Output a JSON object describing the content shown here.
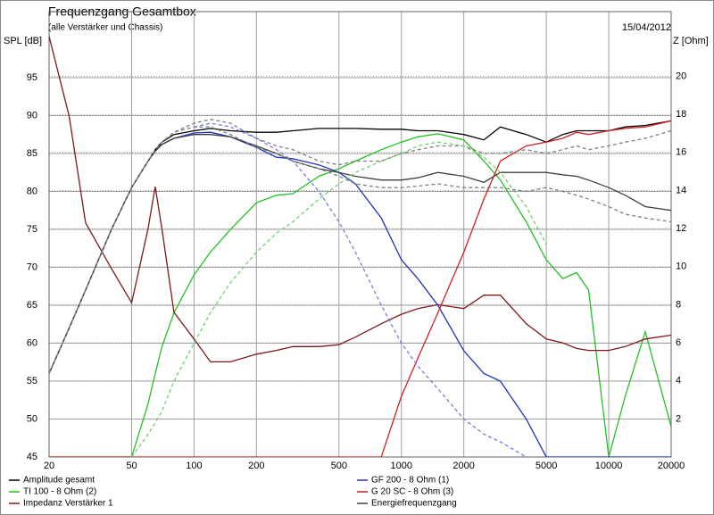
{
  "chart_data": {
    "type": "line",
    "title": "Frequenzgang Gesamtbox",
    "subtitle": "(alle Verstärker und Chassis)",
    "date": "15/04/2012",
    "y_label": "SPL [dB]",
    "y2_label": "Z [Ohm]",
    "x_log": true,
    "grid": true,
    "xlim": [
      20,
      20000
    ],
    "xticks": [
      20,
      50,
      100,
      200,
      500,
      1000,
      2000,
      5000,
      10000,
      20000
    ],
    "ylim": [
      45,
      103.7
    ],
    "yticks": [
      45,
      50,
      55,
      60,
      65,
      70,
      75,
      80,
      85,
      90,
      95
    ],
    "y2lim": [
      0,
      23.4
    ],
    "y2ticks": [
      2,
      4,
      6,
      8,
      10,
      12,
      14,
      16,
      18,
      20
    ],
    "x": [
      20,
      25,
      30,
      40,
      50,
      60,
      65,
      70,
      80,
      100,
      120,
      150,
      200,
      250,
      300,
      400,
      500,
      600,
      800,
      1000,
      1200,
      1500,
      2000,
      2500,
      3000,
      4000,
      5000,
      6000,
      7000,
      8000,
      10000,
      12000,
      15000,
      20000
    ],
    "series": [
      {
        "name": "Amplitude gesamt",
        "color": "#000000",
        "values": [
          56,
          62,
          67,
          75,
          80.5,
          84,
          85.5,
          86.5,
          87.5,
          88,
          88.3,
          88,
          87.8,
          87.8,
          88,
          88.3,
          88.3,
          88.3,
          88.2,
          88.2,
          88,
          88,
          87.5,
          86.8,
          88.5,
          87.5,
          86.5,
          87.5,
          88,
          88,
          88,
          88.5,
          88.7,
          89.3
        ]
      },
      {
        "name": "TI 100 - 8 Ohm (2)",
        "color": "#22c022",
        "values": [
          45,
          45,
          45,
          45,
          45,
          52,
          56,
          59.5,
          64,
          69,
          72,
          75,
          78.5,
          79.5,
          79.7,
          82,
          83,
          84,
          85.5,
          86.5,
          87.2,
          87.6,
          86.8,
          84,
          81.5,
          76,
          71,
          68.5,
          69.3,
          67,
          45,
          53,
          61.5,
          49
        ]
      },
      {
        "name": "Impedanz Verstärker 1",
        "color": "#7a1a1a",
        "axis": "y2",
        "values": [
          22.1,
          17.9,
          12.3,
          9.9,
          8.1,
          12,
          14.2,
          12,
          7.6,
          6.2,
          5,
          5,
          5.4,
          5.6,
          5.8,
          5.8,
          5.9,
          6.3,
          7,
          7.5,
          7.8,
          8,
          7.8,
          8.5,
          8.5,
          7,
          6.2,
          6,
          5.7,
          5.6,
          5.6,
          5.8,
          6.2,
          6.4
        ]
      },
      {
        "name": "GF 200 - 8 Ohm (1)",
        "color": "#2030c0",
        "values": [
          56,
          62,
          67,
          75,
          80.5,
          84,
          85.3,
          86.2,
          87,
          87.7,
          87.8,
          87.2,
          85.8,
          84.5,
          84.3,
          83.5,
          82.5,
          81,
          76.5,
          71,
          68.5,
          65,
          59,
          56,
          55,
          50,
          45,
          45,
          45,
          45,
          45,
          45,
          45,
          45
        ]
      },
      {
        "name": "G 20 SC - 8 Ohm (3)",
        "color": "#d02020",
        "values": [
          45,
          45,
          45,
          45,
          45,
          45,
          45,
          45,
          45,
          45,
          45,
          45,
          45,
          45,
          45,
          45,
          45,
          45,
          45,
          53,
          58,
          64,
          72,
          79,
          84,
          86,
          86.5,
          87,
          87.8,
          87.5,
          88,
          88.3,
          88.5,
          89.3
        ]
      },
      {
        "name": "Energiefrequenzgang",
        "color": "#404040",
        "values": [
          56,
          62,
          67,
          75,
          80.5,
          84,
          85.3,
          86.2,
          87,
          87.5,
          87.5,
          87.2,
          86,
          85,
          84,
          83,
          82.5,
          82,
          81.5,
          81.5,
          81.8,
          82.5,
          82,
          81.2,
          82.5,
          82.5,
          82.5,
          82.2,
          82,
          81.5,
          80.5,
          79.5,
          78,
          77.5
        ]
      },
      {
        "color": "#808080",
        "dash": true,
        "values": [
          56,
          62,
          67,
          75,
          80.5,
          84,
          85.5,
          86.5,
          87.8,
          89,
          89.5,
          89,
          87,
          86,
          85.5,
          84,
          83.5,
          84,
          84,
          85,
          85.5,
          86,
          86,
          85,
          85,
          85.5,
          85,
          85.5,
          86,
          85.5,
          86,
          86.5,
          87,
          88
        ]
      },
      {
        "color": "#808080",
        "dash": true,
        "values": [
          56,
          62,
          67,
          75,
          80.5,
          84,
          85.5,
          86.5,
          87.8,
          88.5,
          88.5,
          87.5,
          85.8,
          85,
          84,
          83,
          82,
          81,
          80.5,
          80.5,
          80.7,
          81,
          80.5,
          80.5,
          80.5,
          80,
          80.5,
          80,
          79.5,
          79,
          78,
          77,
          76.5,
          76
        ]
      },
      {
        "color": "#70d070",
        "dash": true,
        "values": [
          null,
          null,
          null,
          null,
          45,
          48,
          49.5,
          51,
          55,
          60,
          64,
          68,
          72,
          74.5,
          76,
          79,
          81,
          82.5,
          84,
          85,
          86,
          86.5,
          86,
          84.5,
          82.5,
          78,
          73,
          null,
          null,
          null,
          null,
          null,
          null,
          null
        ]
      },
      {
        "color": "#7080e0",
        "dash": true,
        "values": [
          null,
          null,
          null,
          null,
          null,
          null,
          null,
          null,
          null,
          88.5,
          89,
          88.5,
          87,
          85.5,
          84,
          80,
          76,
          72,
          65,
          60,
          57,
          54,
          50,
          48,
          47,
          45,
          null,
          null,
          null,
          null,
          null,
          null,
          null,
          null
        ]
      }
    ]
  }
}
